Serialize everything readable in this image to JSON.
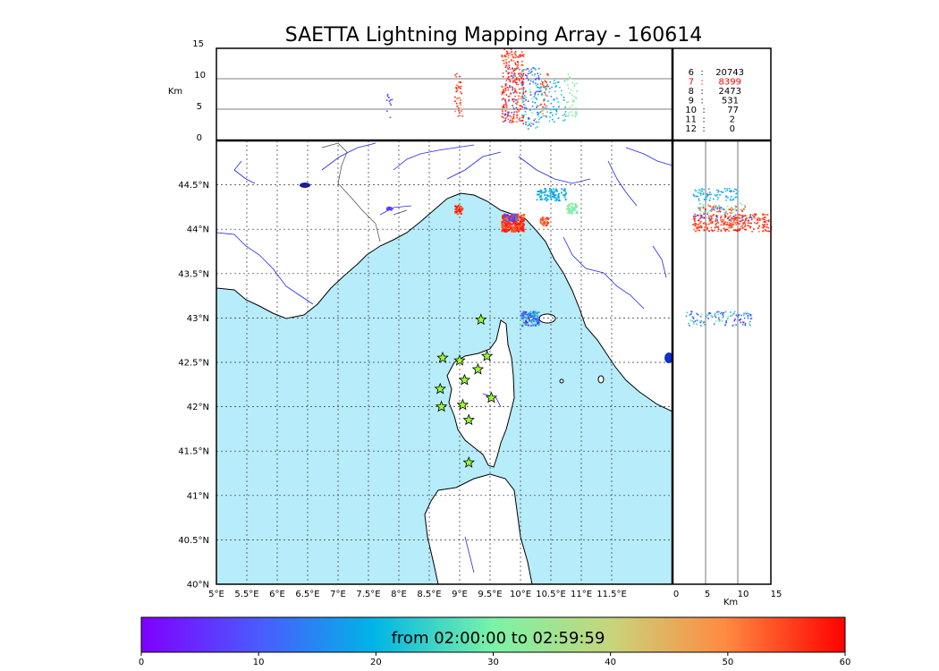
{
  "title": "SAETTA Lightning Mapping Array - 160614",
  "colors": {
    "sea": "#b7ecfa",
    "land": "#ffffff",
    "coast": "#000000",
    "river": "#2222ee",
    "border": "#444444",
    "grid": "#333333",
    "station_fill": "#9aff33",
    "highlight": "#ff0000"
  },
  "top_panel": {
    "ylabel": "Km",
    "y_ticks": [
      "15",
      "10",
      "5",
      "0"
    ],
    "ylim": [
      0,
      15
    ]
  },
  "side_panel": {
    "xlabel": "Km",
    "x_ticks": [
      "0",
      "5",
      "10",
      "15"
    ],
    "xlim": [
      0,
      15
    ]
  },
  "map": {
    "lon_range": [
      5,
      12.5
    ],
    "lat_range": [
      40,
      45
    ],
    "x_ticks": [
      "5°E",
      "5.5°E",
      "6°E",
      "6.5°E",
      "7°E",
      "7.5°E",
      "8°E",
      "8.5°E",
      "9°E",
      "9.5°E",
      "10°E",
      "10.5°E",
      "11°E",
      "11.5°E"
    ],
    "y_ticks": [
      "44.5°N",
      "44°N",
      "43.5°N",
      "43°N",
      "42.5°N",
      "42°N",
      "41.5°N",
      "41°N",
      "40.5°N",
      "40°N"
    ],
    "grid": "dotted",
    "stations": [
      {
        "lon": 9.35,
        "lat": 42.98
      },
      {
        "lon": 8.72,
        "lat": 42.55
      },
      {
        "lon": 9.0,
        "lat": 42.52
      },
      {
        "lon": 9.45,
        "lat": 42.57
      },
      {
        "lon": 9.3,
        "lat": 42.42
      },
      {
        "lon": 9.08,
        "lat": 42.3
      },
      {
        "lon": 8.68,
        "lat": 42.2
      },
      {
        "lon": 9.52,
        "lat": 42.1
      },
      {
        "lon": 8.7,
        "lat": 42.0
      },
      {
        "lon": 9.05,
        "lat": 42.02
      },
      {
        "lon": 9.15,
        "lat": 41.85
      },
      {
        "lon": 9.15,
        "lat": 41.37
      }
    ]
  },
  "stats": [
    {
      "stations": "6",
      "sep": ":",
      "count": "20743",
      "highlight": false
    },
    {
      "stations": "7",
      "sep": ":",
      "count": "8399",
      "highlight": true
    },
    {
      "stations": "8",
      "sep": ":",
      "count": "2473",
      "highlight": false
    },
    {
      "stations": "9",
      "sep": ":",
      "count": "531",
      "highlight": false
    },
    {
      "stations": "10",
      "sep": ":",
      "count": "77",
      "highlight": false
    },
    {
      "stations": "11",
      "sep": ":",
      "count": "2",
      "highlight": false
    },
    {
      "stations": "12",
      "sep": ":",
      "count": "0",
      "highlight": false
    }
  ],
  "colorbar": {
    "caption": "from 02:00:00 to 02:59:59",
    "ticks": [
      "0",
      "10",
      "20",
      "30",
      "40",
      "50",
      "60"
    ],
    "range": [
      0,
      60
    ],
    "colormap": "rainbow"
  },
  "lightning_clusters": [
    {
      "lon_min": 7.78,
      "lon_max": 7.88,
      "lat_min": 44.22,
      "lat_max": 44.26,
      "alt_min": 3,
      "alt_max": 8,
      "time_min": 5,
      "time_max": 10,
      "n": 12
    },
    {
      "lon_min": 8.9,
      "lon_max": 9.05,
      "lat_min": 44.18,
      "lat_max": 44.28,
      "alt_min": 4,
      "alt_max": 11,
      "time_min": 50,
      "time_max": 60,
      "n": 40
    },
    {
      "lon_min": 9.68,
      "lon_max": 10.05,
      "lat_min": 43.98,
      "lat_max": 44.18,
      "alt_min": 3,
      "alt_max": 15,
      "time_min": 52,
      "time_max": 60,
      "n": 260
    },
    {
      "lon_min": 9.72,
      "lon_max": 9.92,
      "lat_min": 44.1,
      "lat_max": 44.18,
      "alt_min": 3,
      "alt_max": 12,
      "time_min": 5,
      "time_max": 15,
      "n": 30
    },
    {
      "lon_min": 10.3,
      "lon_max": 10.45,
      "lat_min": 44.05,
      "lat_max": 44.15,
      "alt_min": 4,
      "alt_max": 11,
      "time_min": 48,
      "time_max": 58,
      "n": 40
    },
    {
      "lon_min": 10.25,
      "lon_max": 10.75,
      "lat_min": 44.33,
      "lat_max": 44.47,
      "alt_min": 3,
      "alt_max": 10,
      "time_min": 15,
      "time_max": 24,
      "n": 80
    },
    {
      "lon_min": 10.75,
      "lon_max": 10.92,
      "lat_min": 44.18,
      "lat_max": 44.3,
      "alt_min": 4,
      "alt_max": 11,
      "time_min": 28,
      "time_max": 34,
      "n": 40
    },
    {
      "lon_min": 10.0,
      "lon_max": 10.3,
      "lat_min": 42.92,
      "lat_max": 43.08,
      "alt_min": 2,
      "alt_max": 12,
      "time_min": 2,
      "time_max": 30,
      "n": 120
    }
  ]
}
